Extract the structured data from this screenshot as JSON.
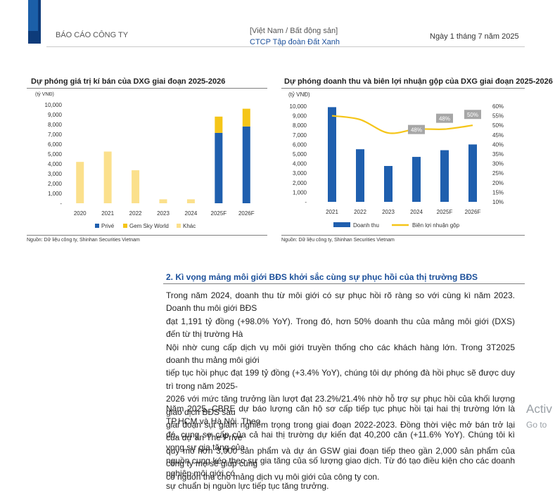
{
  "header": {
    "report_type": "BÁO CÁO CÔNG TY",
    "category": "[Việt Nam / Bất động sản]",
    "company": "CTCP Tập đoàn Đất Xanh",
    "date": "Ngày 1 tháng 7 năm 2025"
  },
  "chart_left": {
    "title": "Dự phóng giá trị kí bán của DXG giai đoạn 2025-2026",
    "source": "Nguồn: Dữ liệu công ty, Shinhan Securities Vietnam"
  },
  "chart_right": {
    "title": "Dự phóng doanh thu và biên lợi nhuận gộp của DXG giai đoạn 2025-2026",
    "source": "Nguồn: Dữ liệu công ty, Shinhan Securities Vietnam"
  },
  "chart_data": [
    {
      "type": "bar",
      "stacked": true,
      "title": "Dự phóng giá trị kí bán của DXG giai đoạn 2025-2026",
      "ylabel": "(tỷ VNĐ)",
      "ylim": [
        0,
        10000
      ],
      "yticks": [
        "10,000",
        "9,000",
        "8,000",
        "7,000",
        "6,000",
        "5,000",
        "4,000",
        "3,000",
        "2,000",
        "1,000",
        "-"
      ],
      "categories": [
        "2020",
        "2021",
        "2022",
        "2023",
        "2024",
        "2025F",
        "2026F"
      ],
      "series": [
        {
          "name": "Privé",
          "color": "#1f5fae",
          "values": [
            0,
            0,
            0,
            0,
            0,
            7150,
            7800
          ]
        },
        {
          "name": "Gem Sky World",
          "color": "#f5c518",
          "values": [
            0,
            0,
            0,
            0,
            0,
            1650,
            1800
          ]
        },
        {
          "name": "Khác",
          "color": "#fbe08c",
          "values": [
            4200,
            5250,
            3350,
            400,
            400,
            0,
            0
          ]
        }
      ],
      "legend": "bottom",
      "grid": false
    },
    {
      "type": "bar+line",
      "title": "Dự phóng doanh thu và biên lợi nhuận gộp của DXG giai đoạn 2025-2026",
      "ylabel": "(tỷ VNĐ)",
      "ylim": [
        0,
        10000
      ],
      "y2lim": [
        10,
        60
      ],
      "yticks": [
        "10,000",
        "9,000",
        "8,000",
        "7,000",
        "6,000",
        "5,000",
        "4,000",
        "3,000",
        "2,000",
        "1,000",
        "-"
      ],
      "y2ticks": [
        "60%",
        "55%",
        "50%",
        "45%",
        "40%",
        "35%",
        "30%",
        "25%",
        "20%",
        "15%",
        "10%"
      ],
      "categories": [
        "2021",
        "2022",
        "2023",
        "2024",
        "2025F",
        "2026F"
      ],
      "series": [
        {
          "name": "Doanh thu",
          "color": "#1f5fae",
          "type": "bar",
          "values": [
            9900,
            5500,
            3750,
            4700,
            5400,
            6000
          ]
        },
        {
          "name": "Biên lợi nhuận gộp",
          "color": "#f5c518",
          "type": "line",
          "axis": "y2",
          "values": [
            55,
            53,
            46,
            48,
            48,
            50
          ]
        }
      ],
      "annotations": [
        {
          "category": "2024",
          "text": "48%"
        },
        {
          "category": "2025F",
          "text": "48%"
        },
        {
          "category": "2026F",
          "text": "50%"
        }
      ],
      "legend": "bottom",
      "grid": false
    }
  ],
  "section": {
    "title": "2. Kì vọng mảng môi giới BĐS khởi sắc cùng sự phục hồi của thị trường BĐS",
    "para1_lines": [
      "Trong năm 2024, doanh thu từ môi giới có sự phục hồi rõ ràng so với cùng kì năm 2023. Doanh thu môi giới BĐS",
      "đạt 1,191 tỷ đồng (+98.0% YoY). Trong đó, hơn 50% doanh thu của mảng môi giới (DXS) đến từ thị trường Hà",
      "Nội nhờ cung cấp dịch vụ môi giới truyền thống cho các khách hàng lớn. Trong 3T2025 doanh thu mảng môi giới",
      "tiếp tục hồi phục đạt 199 tỷ đồng (+3.4% YoY), chúng tôi dự phóng đà hồi phục sẽ được duy trì trong năm 2025-",
      "2026 với mức tăng trưởng lần lượt đạt 23.2%/21.4% nhờ hỗ trợ sự phục hồi của khối lượng giao dịch BĐS sau",
      "giai đoạn sụt giảm nghiêm trọng trong giai đoạn 2022-2023. Đồng thời việc mở bán trở lại của dự án The Privé",
      "quy mô hơn 3,000 sản phẩm và dự án GSW giai đoạn tiếp theo gần 2,000 sản phẩm của công ty mẹ sẽ giúp củng",
      "cố nguồn thu cho mảng dịch vụ môi giới của công ty con."
    ],
    "para2_lines": [
      "Năm 2025, CBRE dự báo lượng căn hộ sơ cấp tiếp tục phục hồi tại hai thị trường lớn là TP.HCM và Hà Nội. Theo",
      "đó, cung sơ cấp của cả hai thị trường dự kiến đạt 40,200 căn (+11.6% YoY). Chúng tôi kì vọng sự gia tăng của",
      "nguồn cung kéo theo sự gia tăng của số lượng giao dịch. Từ đó tạo điều kiện cho các doanh nghiệp môi giới có",
      "sự chuẩn bị nguồn lực tiếp tục tăng trưởng."
    ]
  },
  "watermark": {
    "line1": "Activ",
    "line2": "Go to"
  }
}
